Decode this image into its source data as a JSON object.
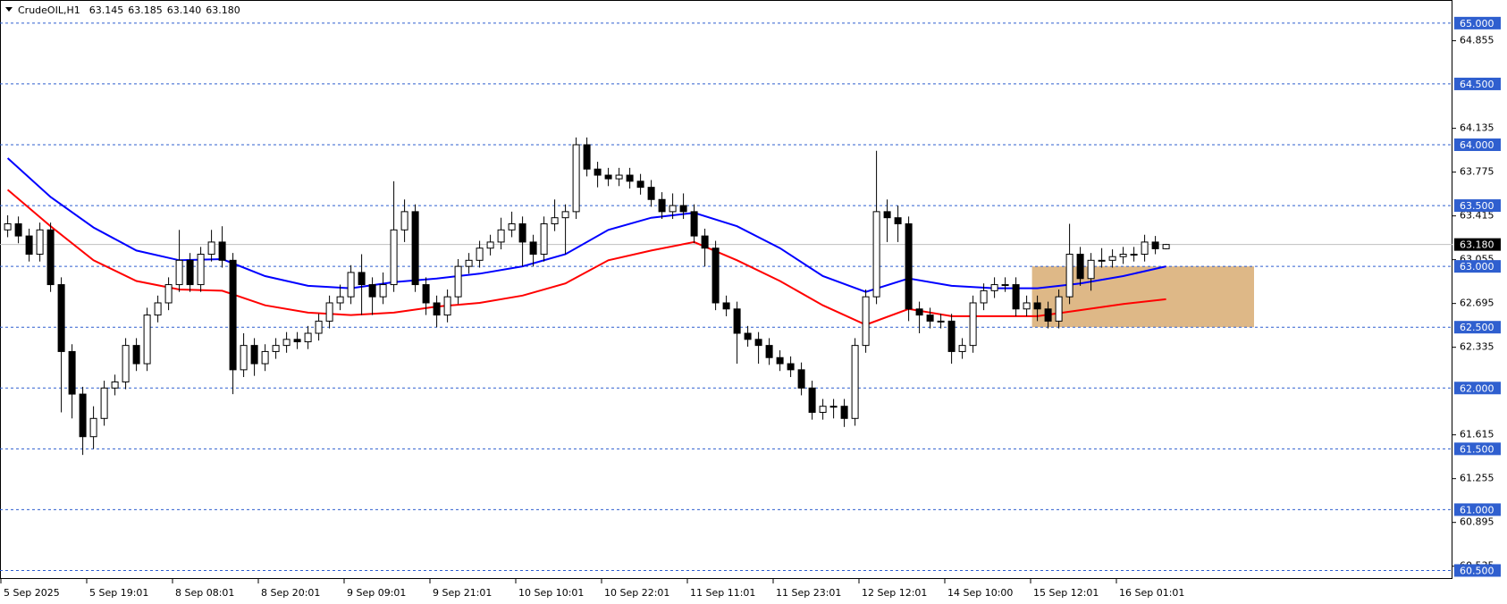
{
  "chart_data": {
    "type": "candlestick",
    "title": "CrudeOIL,H1",
    "quote": [
      "63.145",
      "63.185",
      "63.140",
      "63.180"
    ],
    "categories": [
      "5 Sep 2025",
      null,
      null,
      null,
      null,
      null,
      null,
      null,
      "5 Sep 19:01",
      null,
      null,
      null,
      null,
      null,
      null,
      null,
      "8 Sep 08:01",
      null,
      null,
      null,
      null,
      null,
      null,
      null,
      "8 Sep 20:01",
      null,
      null,
      null,
      null,
      null,
      null,
      null,
      "9 Sep 09:01",
      null,
      null,
      null,
      null,
      null,
      null,
      null,
      "9 Sep 21:01",
      null,
      null,
      null,
      null,
      null,
      null,
      null,
      "10 Sep 10:01",
      null,
      null,
      null,
      null,
      null,
      null,
      null,
      "10 Sep 22:01",
      null,
      null,
      null,
      null,
      null,
      null,
      null,
      "11 Sep 11:01",
      null,
      null,
      null,
      null,
      null,
      null,
      null,
      "11 Sep 23:01",
      null,
      null,
      null,
      null,
      null,
      null,
      null,
      "12 Sep 12:01",
      null,
      null,
      null,
      null,
      null,
      null,
      null,
      "14 Sep 10:00",
      null,
      null,
      null,
      null,
      null,
      null,
      null,
      "15 Sep 12:01",
      null,
      null,
      null,
      null,
      null,
      null,
      null,
      "16 Sep 01:01",
      null,
      null,
      null,
      null
    ],
    "open": [
      63.3,
      63.35,
      63.25,
      63.1,
      63.3,
      62.85,
      62.3,
      61.95,
      61.6,
      61.75,
      62.0,
      62.05,
      62.35,
      62.2,
      62.6,
      62.7,
      62.85,
      63.05,
      62.85,
      63.1,
      63.2,
      63.05,
      62.15,
      62.35,
      62.2,
      62.3,
      62.35,
      62.4,
      62.38,
      62.45,
      62.55,
      62.7,
      62.75,
      62.95,
      62.85,
      62.75,
      62.85,
      63.3,
      63.45,
      62.85,
      62.7,
      62.6,
      62.75,
      63.0,
      63.05,
      63.15,
      63.2,
      63.3,
      63.35,
      63.2,
      63.1,
      63.35,
      63.4,
      63.45,
      64.0,
      63.8,
      63.75,
      63.72,
      63.75,
      63.7,
      63.65,
      63.55,
      63.45,
      63.5,
      63.45,
      63.25,
      63.15,
      62.7,
      62.65,
      62.45,
      62.4,
      62.35,
      62.25,
      62.2,
      62.15,
      62.0,
      61.8,
      61.85,
      61.85,
      61.75,
      62.35,
      62.75,
      63.45,
      63.4,
      63.35,
      62.65,
      62.6,
      62.55,
      62.55,
      62.3,
      62.35,
      62.7,
      62.8,
      62.85,
      62.85,
      62.65,
      62.7,
      62.65,
      62.55,
      62.75,
      63.1,
      62.9,
      63.05,
      63.05,
      63.08,
      63.1,
      63.1,
      63.2,
      63.145
    ],
    "high": [
      63.42,
      63.41,
      63.31,
      63.36,
      63.36,
      62.91,
      62.36,
      62.01,
      61.85,
      62.06,
      62.11,
      62.41,
      62.41,
      62.66,
      62.76,
      62.91,
      63.3,
      63.11,
      63.16,
      63.3,
      63.33,
      63.11,
      62.45,
      62.41,
      62.36,
      62.41,
      62.46,
      62.46,
      62.51,
      62.61,
      62.76,
      62.85,
      63.01,
      63.1,
      62.91,
      62.95,
      63.7,
      63.55,
      63.51,
      62.91,
      62.76,
      62.81,
      63.06,
      63.11,
      63.21,
      63.26,
      63.4,
      63.45,
      63.41,
      63.26,
      63.41,
      63.55,
      63.51,
      64.06,
      64.06,
      63.86,
      63.81,
      63.81,
      63.81,
      63.76,
      63.71,
      63.61,
      63.6,
      63.6,
      63.51,
      63.31,
      63.21,
      62.76,
      62.71,
      62.51,
      62.46,
      62.41,
      62.31,
      62.26,
      62.21,
      62.06,
      61.91,
      61.91,
      61.91,
      62.41,
      62.81,
      63.95,
      63.55,
      63.5,
      63.41,
      62.71,
      62.66,
      62.61,
      62.61,
      62.41,
      62.76,
      62.86,
      62.91,
      62.91,
      62.91,
      62.76,
      62.76,
      62.71,
      62.81,
      63.35,
      63.16,
      63.11,
      63.15,
      63.14,
      63.16,
      63.16,
      63.26,
      63.25,
      63.185
    ],
    "low": [
      63.24,
      63.19,
      63.04,
      63.04,
      62.79,
      61.8,
      61.75,
      61.45,
      61.5,
      61.69,
      61.94,
      61.99,
      62.14,
      62.14,
      62.54,
      62.64,
      62.79,
      62.79,
      62.79,
      63.04,
      62.99,
      61.95,
      62.09,
      62.1,
      62.14,
      62.24,
      62.29,
      62.32,
      62.32,
      62.39,
      62.49,
      62.64,
      62.69,
      62.6,
      62.6,
      62.69,
      62.79,
      63.2,
      62.79,
      62.6,
      62.5,
      62.54,
      62.69,
      62.94,
      62.99,
      63.09,
      63.14,
      63.24,
      63.0,
      63.0,
      63.04,
      63.29,
      63.1,
      63.39,
      63.74,
      63.65,
      63.66,
      63.66,
      63.64,
      63.59,
      63.49,
      63.39,
      63.39,
      63.39,
      63.19,
      63.0,
      62.64,
      62.59,
      62.2,
      62.34,
      62.2,
      62.19,
      62.14,
      62.09,
      61.94,
      61.74,
      61.74,
      61.75,
      61.68,
      61.69,
      62.29,
      62.69,
      63.2,
      63.2,
      62.55,
      62.45,
      62.49,
      62.49,
      62.2,
      62.24,
      62.29,
      62.64,
      62.74,
      62.79,
      62.59,
      62.59,
      62.55,
      62.49,
      62.49,
      62.69,
      62.84,
      62.8,
      62.99,
      62.99,
      63.02,
      63.04,
      63.04,
      63.1,
      63.14
    ],
    "close": [
      63.35,
      63.25,
      63.1,
      63.3,
      62.85,
      62.3,
      61.95,
      61.6,
      61.75,
      62.0,
      62.05,
      62.35,
      62.2,
      62.6,
      62.7,
      62.85,
      63.05,
      62.85,
      63.1,
      63.2,
      63.05,
      62.15,
      62.35,
      62.2,
      62.3,
      62.35,
      62.4,
      62.38,
      62.45,
      62.55,
      62.7,
      62.75,
      62.95,
      62.85,
      62.75,
      62.85,
      63.3,
      63.45,
      62.85,
      62.7,
      62.6,
      62.75,
      63.0,
      63.05,
      63.15,
      63.2,
      63.3,
      63.35,
      63.2,
      63.1,
      63.35,
      63.4,
      63.45,
      64.0,
      63.8,
      63.75,
      63.72,
      63.75,
      63.7,
      63.65,
      63.55,
      63.45,
      63.5,
      63.45,
      63.25,
      63.15,
      62.7,
      62.65,
      62.45,
      62.4,
      62.35,
      62.25,
      62.2,
      62.15,
      62.0,
      61.8,
      61.85,
      61.85,
      61.75,
      62.35,
      62.75,
      63.45,
      63.4,
      63.35,
      62.65,
      62.6,
      62.55,
      62.55,
      62.3,
      62.35,
      62.7,
      62.8,
      62.85,
      62.85,
      62.65,
      62.7,
      62.65,
      62.55,
      62.75,
      63.1,
      62.9,
      63.05,
      63.05,
      63.08,
      63.1,
      63.1,
      63.2,
      63.145,
      63.18
    ],
    "up_color": "#ffffff",
    "down_color": "#000000",
    "overlays": [
      {
        "color": "#0000ff",
        "x": [
          0,
          4,
          8,
          12,
          16,
          20,
          24,
          28,
          32,
          36,
          40,
          44,
          48,
          52,
          56,
          60,
          64,
          68,
          72,
          76,
          80,
          84,
          88,
          92,
          96,
          100,
          104,
          108
        ],
        "values": [
          63.89,
          63.57,
          63.32,
          63.13,
          63.05,
          63.06,
          62.92,
          62.84,
          62.82,
          62.87,
          62.9,
          62.94,
          63.0,
          63.1,
          63.3,
          63.4,
          63.44,
          63.33,
          63.15,
          62.92,
          62.79,
          62.9,
          62.84,
          62.82,
          62.82,
          62.86,
          62.92,
          63.0
        ]
      },
      {
        "color": "#ff0000",
        "x": [
          0,
          4,
          8,
          12,
          16,
          20,
          24,
          28,
          32,
          36,
          40,
          44,
          48,
          52,
          56,
          60,
          64,
          68,
          72,
          76,
          80,
          84,
          88,
          92,
          96,
          100,
          104,
          108
        ],
        "values": [
          63.63,
          63.33,
          63.05,
          62.88,
          62.81,
          62.8,
          62.68,
          62.62,
          62.6,
          62.62,
          62.67,
          62.7,
          62.76,
          62.86,
          63.05,
          63.13,
          63.2,
          63.05,
          62.88,
          62.68,
          62.52,
          62.65,
          62.59,
          62.59,
          62.59,
          62.64,
          62.69,
          62.73
        ]
      }
    ],
    "zone": {
      "x": [
        95.5,
        116.2
      ],
      "y": [
        62.5,
        63.0
      ],
      "color": "#deb887"
    },
    "ylim": [
      60.43,
      65.19
    ],
    "yticks": [
      {
        "value": 64.855,
        "label": "64.855"
      },
      {
        "value": 64.135,
        "label": "64.135"
      },
      {
        "value": 63.775,
        "label": "63.775"
      },
      {
        "value": 63.415,
        "label": "63.415"
      },
      {
        "value": 63.055,
        "label": "63.055"
      },
      {
        "value": 62.695,
        "label": "62.695"
      },
      {
        "value": 62.335,
        "label": "62.335"
      },
      {
        "value": 61.615,
        "label": "61.615"
      },
      {
        "value": 61.255,
        "label": "61.255"
      },
      {
        "value": 60.895,
        "label": "60.895"
      },
      {
        "value": 60.535,
        "label": "60.535"
      }
    ],
    "levels": [
      {
        "value": 65,
        "label": "65.000"
      },
      {
        "value": 64.5,
        "label": "64.500"
      },
      {
        "value": 64,
        "label": "64.000"
      },
      {
        "value": 63.5,
        "label": "63.500"
      },
      {
        "value": 63,
        "label": "63.000"
      },
      {
        "value": 62.5,
        "label": "62.500"
      },
      {
        "value": 62,
        "label": "62.000"
      },
      {
        "value": 61.5,
        "label": "61.500"
      },
      {
        "value": 61,
        "label": "61.000"
      },
      {
        "value": 60.5,
        "label": "60.500"
      }
    ],
    "level_color": "#2f5fcf",
    "last_price": {
      "value": 63.18,
      "label": "63.180"
    }
  }
}
